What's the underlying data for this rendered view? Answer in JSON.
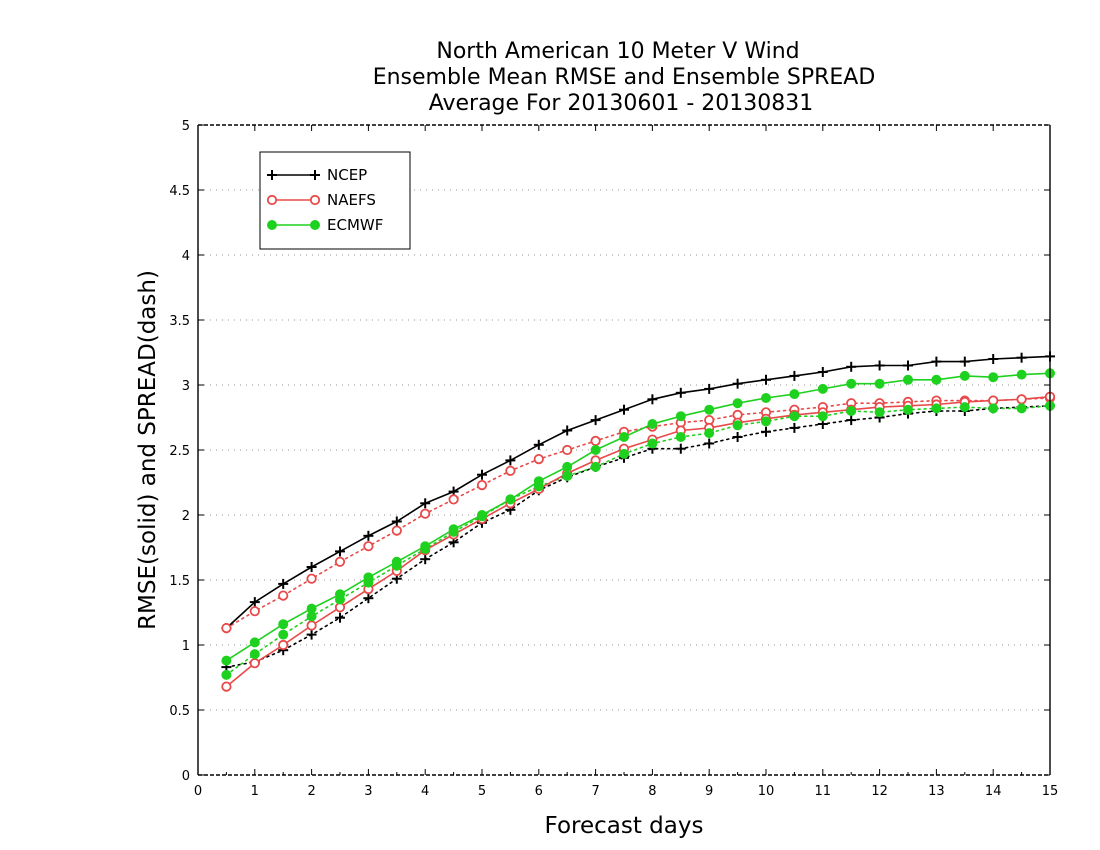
{
  "chart_data": {
    "type": "line",
    "title": [
      "North American 10 Meter V Wind",
      "Ensemble Mean RMSE and Ensemble SPREAD",
      "Average For 20130601 - 20130831"
    ],
    "xlabel": "Forecast days",
    "ylabel": "RMSE(solid) and SPREAD(dash)",
    "xlim": [
      0,
      15
    ],
    "ylim": [
      0,
      5
    ],
    "x_ticks": [
      "0",
      "1",
      "2",
      "3",
      "4",
      "5",
      "6",
      "7",
      "8",
      "9",
      "10",
      "11",
      "12",
      "13",
      "14",
      "15"
    ],
    "y_ticks": [
      "0",
      "0.5",
      "1",
      "1.5",
      "2",
      "2.5",
      "3",
      "3.5",
      "4",
      "4.5",
      "5"
    ],
    "grid": "horizontal dotted",
    "legend_position": "top-left",
    "x": [
      0.5,
      1,
      1.5,
      2,
      2.5,
      3,
      3.5,
      4,
      4.5,
      5,
      5.5,
      6,
      6.5,
      7,
      7.5,
      8,
      8.5,
      9,
      9.5,
      10,
      10.5,
      11,
      11.5,
      12,
      12.5,
      13,
      13.5,
      14,
      14.5,
      15
    ],
    "series": [
      {
        "name": "NCEP",
        "color": "#000000",
        "marker": "plus",
        "rmse": [
          1.13,
          1.33,
          1.47,
          1.6,
          1.72,
          1.84,
          1.95,
          2.09,
          2.18,
          2.31,
          2.42,
          2.54,
          2.65,
          2.73,
          2.81,
          2.89,
          2.94,
          2.97,
          3.01,
          3.04,
          3.07,
          3.1,
          3.14,
          3.15,
          3.15,
          3.18,
          3.18,
          3.2,
          3.21,
          3.22
        ],
        "spread": [
          0.83,
          0.87,
          0.96,
          1.08,
          1.21,
          1.36,
          1.51,
          1.66,
          1.79,
          1.94,
          2.04,
          2.19,
          2.29,
          2.37,
          2.44,
          2.51,
          2.51,
          2.55,
          2.6,
          2.64,
          2.67,
          2.7,
          2.73,
          2.75,
          2.78,
          2.8,
          2.8,
          2.82,
          2.83,
          2.84
        ]
      },
      {
        "name": "NAEFS",
        "color": "#e84a4a",
        "marker": "circle-open",
        "rmse": [
          0.68,
          0.86,
          1.0,
          1.15,
          1.29,
          1.43,
          1.57,
          1.73,
          1.85,
          1.97,
          2.09,
          2.2,
          2.32,
          2.42,
          2.51,
          2.58,
          2.65,
          2.67,
          2.71,
          2.74,
          2.77,
          2.79,
          2.81,
          2.83,
          2.84,
          2.85,
          2.87,
          2.88,
          2.89,
          2.91
        ],
        "spread": [
          1.13,
          1.26,
          1.38,
          1.51,
          1.64,
          1.76,
          1.88,
          2.01,
          2.12,
          2.23,
          2.34,
          2.43,
          2.5,
          2.57,
          2.64,
          2.68,
          2.71,
          2.73,
          2.77,
          2.79,
          2.81,
          2.83,
          2.86,
          2.86,
          2.87,
          2.88,
          2.88,
          2.88,
          2.89,
          2.9
        ]
      },
      {
        "name": "ECMWF",
        "color": "#1fd11f",
        "marker": "circle-filled",
        "rmse": [
          0.88,
          1.02,
          1.16,
          1.28,
          1.39,
          1.52,
          1.64,
          1.76,
          1.89,
          2.0,
          2.12,
          2.26,
          2.37,
          2.5,
          2.6,
          2.7,
          2.76,
          2.81,
          2.86,
          2.9,
          2.93,
          2.97,
          3.01,
          3.01,
          3.04,
          3.04,
          3.07,
          3.06,
          3.08,
          3.09
        ],
        "spread": [
          0.77,
          0.93,
          1.08,
          1.22,
          1.35,
          1.48,
          1.61,
          1.74,
          1.87,
          1.99,
          2.12,
          2.22,
          2.3,
          2.37,
          2.47,
          2.55,
          2.6,
          2.63,
          2.69,
          2.72,
          2.76,
          2.76,
          2.8,
          2.79,
          2.81,
          2.82,
          2.83,
          2.82,
          2.82,
          2.84
        ]
      }
    ]
  }
}
